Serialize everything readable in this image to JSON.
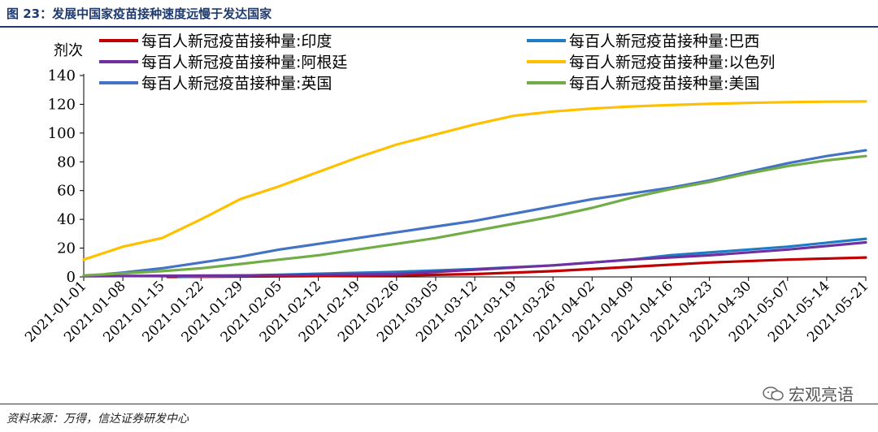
{
  "figure": {
    "title": "图 23：发展中国家疫苗接种速度远慢于发达国家",
    "source": "资料来源：万得，信达证券研发中心",
    "watermark": "宏观亮语"
  },
  "chart_data": {
    "type": "line",
    "ylabel": "剂次",
    "xlabel": "",
    "ylim": [
      0,
      140
    ],
    "yticks": [
      0,
      20,
      40,
      60,
      80,
      100,
      120,
      140
    ],
    "xlim": [
      "2021-01-01",
      "2021-05-21"
    ],
    "xticks": [
      "2021-01-01",
      "2021-01-08",
      "2021-01-15",
      "2021-01-22",
      "2021-01-29",
      "2021-02-05",
      "2021-02-12",
      "2021-02-19",
      "2021-02-26",
      "2021-03-05",
      "2021-03-12",
      "2021-03-19",
      "2021-03-26",
      "2021-04-02",
      "2021-04-09",
      "2021-04-16",
      "2021-04-23",
      "2021-04-30",
      "2021-05-07",
      "2021-05-14",
      "2021-05-21"
    ],
    "grid": false,
    "legend_position": "top",
    "series": [
      {
        "name": "每百人新冠疫苗接种量:印度",
        "color": "#c00000",
        "x": [
          "2021-01-16",
          "2021-02-05",
          "2021-02-26",
          "2021-03-12",
          "2021-03-26",
          "2021-04-09",
          "2021-04-23",
          "2021-05-07",
          "2021-05-21"
        ],
        "values": [
          0,
          0.4,
          1.0,
          2.0,
          4.0,
          7.0,
          10.0,
          12.0,
          13.5
        ]
      },
      {
        "name": "每百人新冠疫苗接种量:巴西",
        "color": "#1f7bc4",
        "x": [
          "2021-01-18",
          "2021-02-05",
          "2021-02-26",
          "2021-03-12",
          "2021-03-26",
          "2021-04-09",
          "2021-04-16",
          "2021-04-23",
          "2021-05-07",
          "2021-05-21"
        ],
        "values": [
          0,
          1.5,
          3.5,
          5.5,
          8.0,
          12.0,
          15.0,
          17.0,
          21.0,
          26.5
        ]
      },
      {
        "name": "每百人新冠疫苗接种量:阿根廷",
        "color": "#7030a0",
        "x": [
          "2021-01-01",
          "2021-01-29",
          "2021-02-26",
          "2021-03-12",
          "2021-03-26",
          "2021-04-09",
          "2021-04-23",
          "2021-05-07",
          "2021-05-21"
        ],
        "values": [
          0.5,
          1.0,
          2.0,
          5.0,
          8.0,
          12.0,
          15.0,
          19.0,
          24.0
        ]
      },
      {
        "name": "每百人新冠疫苗接种量:以色列",
        "color": "#ffc000",
        "x": [
          "2021-01-01",
          "2021-01-08",
          "2021-01-15",
          "2021-01-22",
          "2021-01-29",
          "2021-02-05",
          "2021-02-12",
          "2021-02-19",
          "2021-02-26",
          "2021-03-05",
          "2021-03-12",
          "2021-03-19",
          "2021-03-26",
          "2021-04-02",
          "2021-04-09",
          "2021-04-16",
          "2021-04-23",
          "2021-04-30",
          "2021-05-07",
          "2021-05-14",
          "2021-05-21"
        ],
        "values": [
          12,
          21,
          27,
          40,
          54,
          63,
          73,
          83,
          92,
          99,
          106,
          112,
          115,
          117,
          118.5,
          119.5,
          120.3,
          121,
          121.5,
          121.8,
          122
        ]
      },
      {
        "name": "每百人新冠疫苗接种量:英国",
        "color": "#4472c4",
        "x": [
          "2021-01-05",
          "2021-01-08",
          "2021-01-15",
          "2021-01-22",
          "2021-01-29",
          "2021-02-05",
          "2021-02-12",
          "2021-02-19",
          "2021-02-26",
          "2021-03-05",
          "2021-03-12",
          "2021-03-19",
          "2021-03-26",
          "2021-04-02",
          "2021-04-09",
          "2021-04-16",
          "2021-04-23",
          "2021-04-30",
          "2021-05-07",
          "2021-05-14",
          "2021-05-21"
        ],
        "values": [
          2,
          3,
          6,
          10,
          14,
          19,
          23,
          27,
          31,
          35,
          39,
          44,
          49,
          54,
          58,
          62,
          67,
          73,
          79,
          84,
          88
        ]
      },
      {
        "name": "每百人新冠疫苗接种量:美国",
        "color": "#70ad47",
        "x": [
          "2021-01-01",
          "2021-01-08",
          "2021-01-15",
          "2021-01-22",
          "2021-01-29",
          "2021-02-05",
          "2021-02-12",
          "2021-02-19",
          "2021-02-26",
          "2021-03-05",
          "2021-03-12",
          "2021-03-19",
          "2021-03-26",
          "2021-04-02",
          "2021-04-09",
          "2021-04-16",
          "2021-04-23",
          "2021-04-30",
          "2021-05-07",
          "2021-05-14",
          "2021-05-21"
        ],
        "values": [
          1,
          2.5,
          4,
          6,
          9,
          12,
          15,
          19,
          23,
          27,
          32,
          37,
          42,
          48,
          55,
          61,
          66,
          72,
          77,
          81,
          84
        ]
      }
    ]
  }
}
